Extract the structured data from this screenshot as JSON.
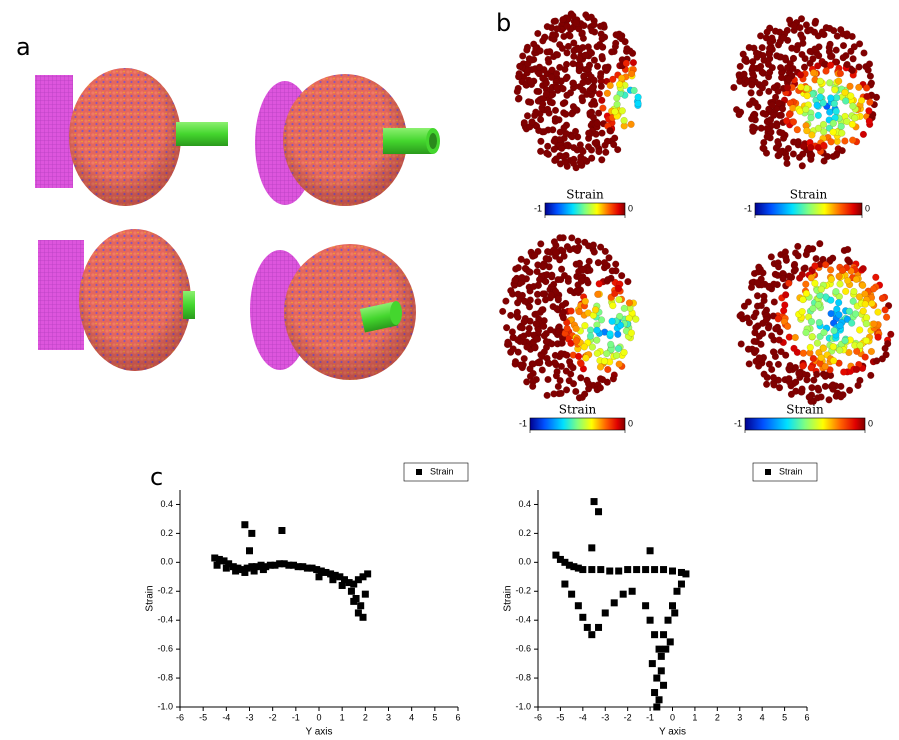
{
  "panels": {
    "a": {
      "label": "a"
    },
    "b": {
      "label": "b",
      "colorbars": [
        {
          "title": "Strain",
          "ticks": [
            -1,
            0
          ]
        },
        {
          "title": "Strain",
          "ticks": [
            -1,
            0
          ]
        },
        {
          "title": "Strain",
          "ticks": [
            -1,
            0
          ]
        },
        {
          "title": "Strain",
          "ticks": [
            -1,
            0
          ]
        }
      ]
    },
    "c": {
      "label": "c"
    }
  },
  "chart_data": [
    {
      "type": "scatter",
      "xlabel": "Y axis",
      "ylabel": "Strain",
      "legend": "upper right",
      "xlim": [
        -6,
        6
      ],
      "xticks": [
        -6,
        -5,
        -4,
        -3,
        -2,
        -1,
        0,
        1,
        2,
        3,
        4,
        5,
        6
      ],
      "ylim": [
        -1,
        0.5
      ],
      "yticks": [
        {
          "value": -1,
          "label": "-1.0"
        },
        {
          "value": -0.8,
          "label": "-0.8"
        },
        {
          "value": -0.6,
          "label": "-0.6"
        },
        {
          "value": -0.4,
          "label": "-0.4"
        },
        {
          "value": -0.2,
          "label": "-0.2"
        },
        {
          "value": 0,
          "label": "0.0"
        },
        {
          "value": 0.2,
          "label": "0.2"
        },
        {
          "value": 0.4,
          "label": "0.4"
        }
      ],
      "x": [
        -4.5,
        -4.3,
        -4.1,
        -3.9,
        -3.7,
        -3.5,
        -3.3,
        -3.1,
        -2.9,
        -2.7,
        -2.5,
        -2.3,
        -2.1,
        -1.9,
        -1.7,
        -1.5,
        -1.3,
        -1.1,
        -0.9,
        -0.7,
        -0.5,
        -0.3,
        -0.1,
        0.1,
        0.3,
        0.5,
        0.7,
        0.9,
        1.1,
        1.3,
        1.5,
        1.7,
        1.9,
        2.1,
        -4.4,
        -4.0,
        -3.6,
        -3.2,
        -2.8,
        -2.4,
        0.0,
        0.6,
        1.0,
        1.4,
        1.6,
        1.8,
        2.0,
        1.7,
        1.9,
        1.5,
        -3.2,
        -2.9,
        -1.6,
        -3.0
      ],
      "series": [
        {
          "name": "Strain",
          "color": "#000000",
          "values": [
            0.03,
            0.02,
            0.01,
            -0.01,
            -0.03,
            -0.04,
            -0.05,
            -0.04,
            -0.03,
            -0.03,
            -0.02,
            -0.03,
            -0.02,
            -0.02,
            -0.01,
            -0.01,
            -0.02,
            -0.02,
            -0.03,
            -0.03,
            -0.04,
            -0.04,
            -0.05,
            -0.06,
            -0.07,
            -0.08,
            -0.09,
            -0.1,
            -0.12,
            -0.14,
            -0.15,
            -0.12,
            -0.1,
            -0.08,
            -0.02,
            -0.04,
            -0.06,
            -0.07,
            -0.06,
            -0.05,
            -0.1,
            -0.12,
            -0.16,
            -0.2,
            -0.25,
            -0.3,
            -0.22,
            -0.35,
            -0.38,
            -0.27,
            0.26,
            0.2,
            0.22,
            0.08
          ]
        }
      ]
    },
    {
      "type": "scatter",
      "xlabel": "Y axis",
      "ylabel": "Strain",
      "legend": "upper right",
      "xlim": [
        -6,
        6
      ],
      "xticks": [
        -6,
        -5,
        -4,
        -3,
        -2,
        -1,
        0,
        1,
        2,
        3,
        4,
        5,
        6
      ],
      "ylim": [
        -1,
        0.5
      ],
      "yticks": [
        {
          "value": -1,
          "label": "-1.0"
        },
        {
          "value": -0.8,
          "label": "-0.8"
        },
        {
          "value": -0.6,
          "label": "-0.6"
        },
        {
          "value": -0.4,
          "label": "-0.4"
        },
        {
          "value": -0.2,
          "label": "-0.2"
        },
        {
          "value": 0,
          "label": "0.0"
        },
        {
          "value": 0.2,
          "label": "0.2"
        },
        {
          "value": 0.4,
          "label": "0.4"
        }
      ],
      "x": [
        -5.2,
        -5.0,
        -4.8,
        -4.6,
        -4.4,
        -4.2,
        -4.0,
        -3.6,
        -3.2,
        -2.8,
        -2.4,
        -2.0,
        -1.6,
        -1.2,
        -0.8,
        -0.4,
        0.0,
        0.4,
        0.6,
        -4.8,
        -4.5,
        -4.2,
        -4.0,
        -3.8,
        -3.6,
        -3.3,
        -3.0,
        -2.6,
        -2.2,
        -1.8,
        -1.2,
        -1.0,
        -0.8,
        -0.6,
        -0.4,
        -0.2,
        0.0,
        0.2,
        0.4,
        -0.9,
        -0.7,
        -0.5,
        -0.3,
        -0.1,
        0.1,
        -0.8,
        -0.6,
        -0.4,
        -0.7,
        -0.5,
        -3.5,
        -3.3,
        -3.6,
        -1.0
      ],
      "series": [
        {
          "name": "Strain",
          "color": "#000000",
          "values": [
            0.05,
            0.02,
            0.0,
            -0.02,
            -0.03,
            -0.04,
            -0.05,
            -0.05,
            -0.05,
            -0.06,
            -0.06,
            -0.05,
            -0.05,
            -0.05,
            -0.05,
            -0.05,
            -0.06,
            -0.07,
            -0.08,
            -0.15,
            -0.22,
            -0.3,
            -0.38,
            -0.45,
            -0.5,
            -0.45,
            -0.35,
            -0.28,
            -0.22,
            -0.2,
            -0.3,
            -0.4,
            -0.5,
            -0.6,
            -0.5,
            -0.4,
            -0.3,
            -0.2,
            -0.15,
            -0.7,
            -0.8,
            -0.75,
            -0.6,
            -0.55,
            -0.35,
            -0.9,
            -0.95,
            -0.85,
            -1.0,
            -0.65,
            0.42,
            0.35,
            0.1,
            0.08
          ]
        }
      ]
    }
  ]
}
